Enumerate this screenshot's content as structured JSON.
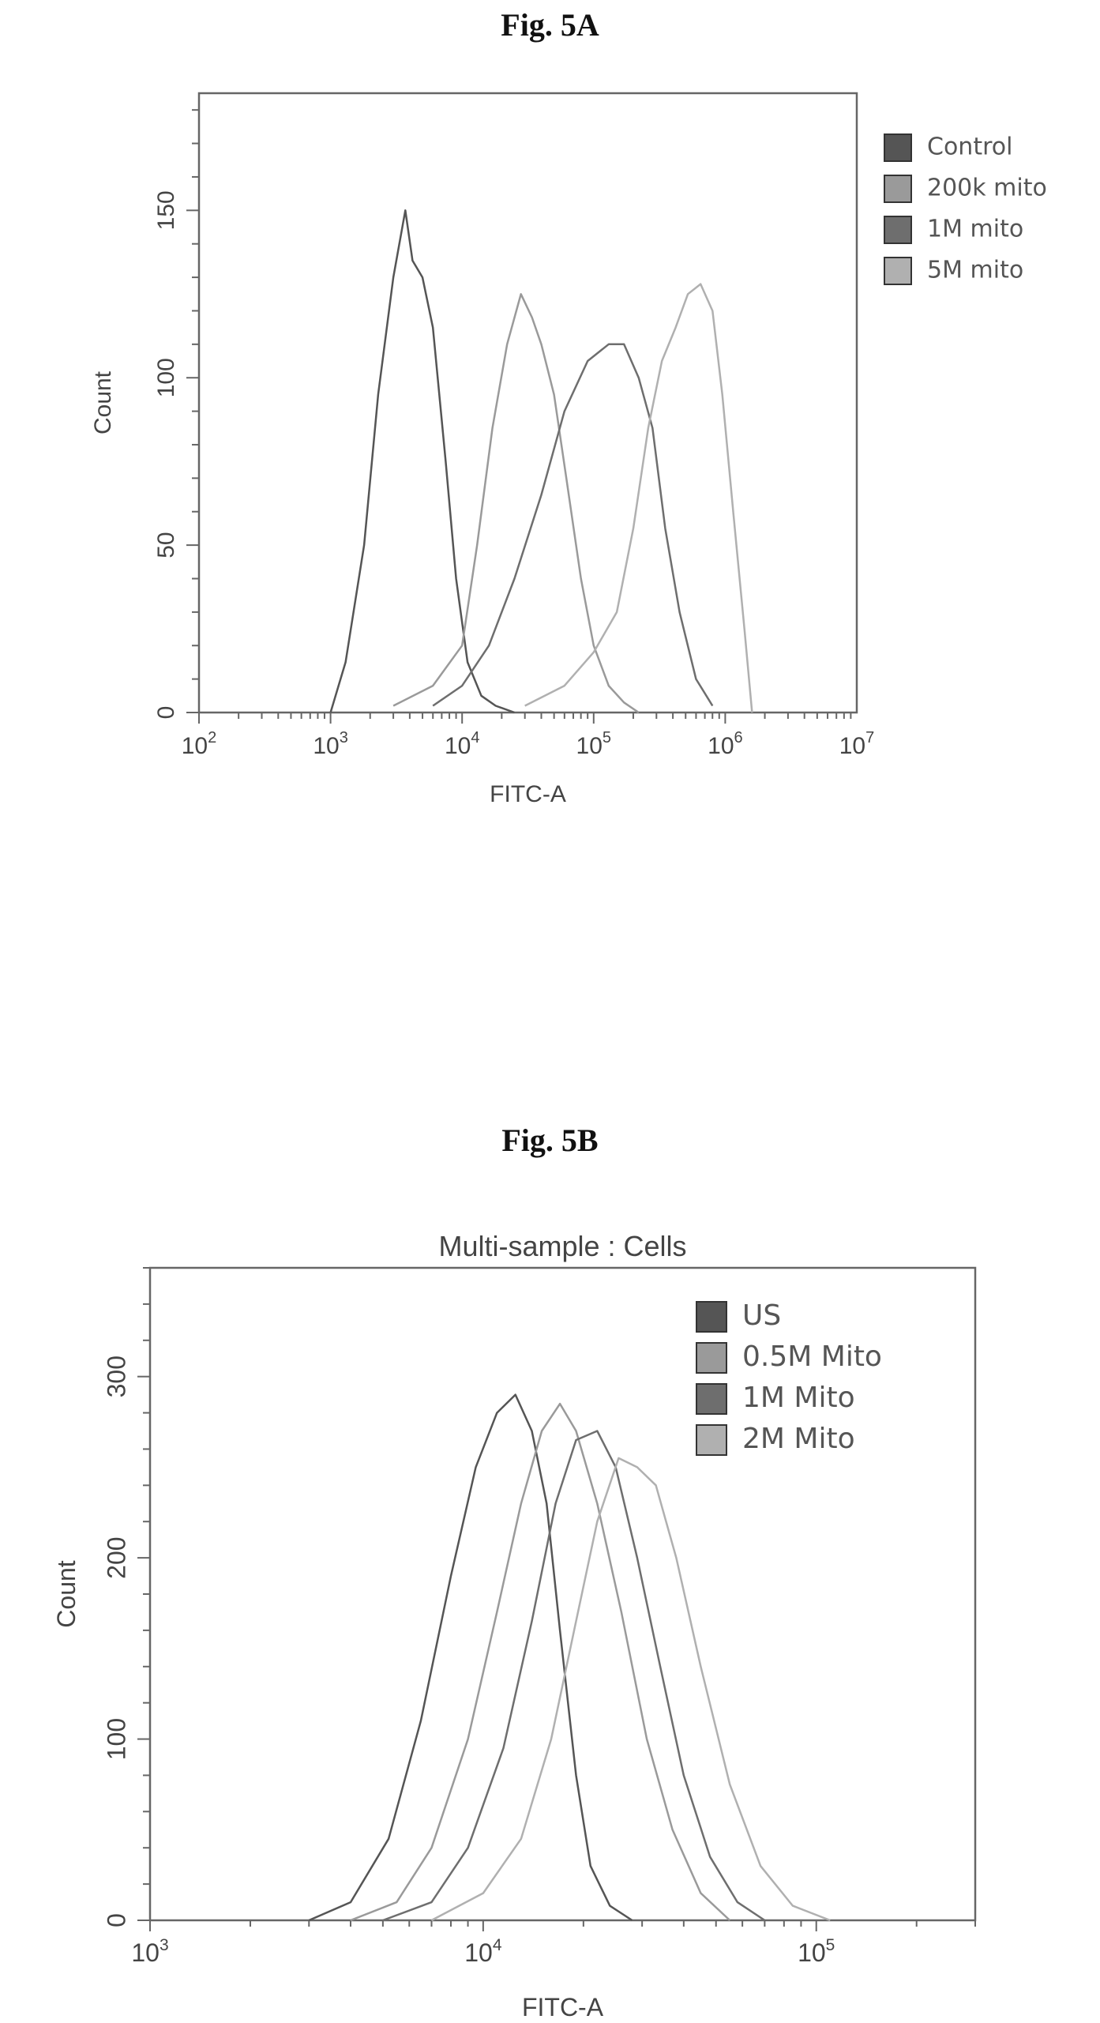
{
  "figure_a": {
    "label": "Fig. 5A"
  },
  "figure_b": {
    "label": "Fig. 5B"
  },
  "chart_data": [
    {
      "type": "line",
      "title": "",
      "xlabel": "FITC-A",
      "ylabel": "Count",
      "x_scale": "log",
      "xlim": [
        100,
        10000000
      ],
      "ylim": [
        0,
        185
      ],
      "x_ticks": [
        {
          "base": "10",
          "exp": "2",
          "value": 100
        },
        {
          "base": "10",
          "exp": "3",
          "value": 1000
        },
        {
          "base": "10",
          "exp": "4",
          "value": 10000
        },
        {
          "base": "10",
          "exp": "5",
          "value": 100000
        },
        {
          "base": "10",
          "exp": "6",
          "value": 1000000
        },
        {
          "base": "10",
          "exp": "7",
          "value": 10000000
        }
      ],
      "y_ticks": [
        "0",
        "50",
        "100",
        "150"
      ],
      "legend_position": "right",
      "series": [
        {
          "name": "Control",
          "color": "#555555",
          "x": [
            1000,
            1300,
            1800,
            2300,
            3000,
            3700,
            4200,
            5000,
            6000,
            7500,
            9000,
            11000,
            14000,
            18000,
            25000
          ],
          "y": [
            0,
            15,
            50,
            95,
            130,
            150,
            135,
            130,
            115,
            75,
            40,
            15,
            5,
            2,
            0
          ]
        },
        {
          "name": "200k mito",
          "color": "#9a9a9a",
          "x": [
            3000,
            6000,
            10000,
            13000,
            17000,
            22000,
            28000,
            34000,
            40000,
            50000,
            62000,
            80000,
            100000,
            130000,
            170000,
            220000
          ],
          "y": [
            2,
            8,
            20,
            50,
            85,
            110,
            125,
            118,
            110,
            95,
            70,
            40,
            20,
            8,
            3,
            0
          ]
        },
        {
          "name": "1M mito",
          "color": "#6e6e6e",
          "x": [
            6000,
            10000,
            16000,
            25000,
            40000,
            60000,
            90000,
            130000,
            170000,
            220000,
            280000,
            350000,
            450000,
            600000,
            800000
          ],
          "y": [
            2,
            8,
            20,
            40,
            65,
            90,
            105,
            110,
            110,
            100,
            85,
            55,
            30,
            10,
            2
          ]
        },
        {
          "name": "5M mito",
          "color": "#b0b0b0",
          "x": [
            30000,
            60000,
            100000,
            150000,
            200000,
            260000,
            330000,
            420000,
            520000,
            650000,
            800000,
            950000,
            1150000,
            1400000,
            1600000
          ],
          "y": [
            2,
            8,
            18,
            30,
            55,
            85,
            105,
            115,
            125,
            128,
            120,
            95,
            60,
            25,
            0
          ]
        }
      ]
    },
    {
      "type": "line",
      "title": "Multi-sample : Cells",
      "xlabel": "FITC-A",
      "ylabel": "Count",
      "x_scale": "log",
      "xlim": [
        1000,
        300000
      ],
      "ylim": [
        0,
        360
      ],
      "x_ticks": [
        {
          "base": "10",
          "exp": "3",
          "value": 1000
        },
        {
          "base": "10",
          "exp": "4",
          "value": 10000
        },
        {
          "base": "10",
          "exp": "5",
          "value": 100000
        }
      ],
      "y_ticks": [
        "0",
        "100",
        "200",
        "300"
      ],
      "legend_position": "top-right",
      "series": [
        {
          "name": "US",
          "color": "#555555",
          "x": [
            3000,
            4000,
            5200,
            6500,
            8000,
            9500,
            11000,
            12500,
            14000,
            15500,
            17000,
            19000,
            21000,
            24000,
            28000
          ],
          "y": [
            0,
            10,
            45,
            110,
            190,
            250,
            280,
            290,
            270,
            230,
            160,
            80,
            30,
            8,
            0
          ]
        },
        {
          "name": "0.5M Mito",
          "color": "#9a9a9a",
          "x": [
            4000,
            5500,
            7000,
            9000,
            11000,
            13000,
            15000,
            17000,
            19000,
            22000,
            26000,
            31000,
            37000,
            45000,
            55000
          ],
          "y": [
            0,
            10,
            40,
            100,
            170,
            230,
            270,
            285,
            270,
            230,
            170,
            100,
            50,
            15,
            0
          ]
        },
        {
          "name": "1M Mito",
          "color": "#6e6e6e",
          "x": [
            5000,
            7000,
            9000,
            11500,
            14000,
            16500,
            19000,
            22000,
            25000,
            29000,
            34000,
            40000,
            48000,
            58000,
            70000
          ],
          "y": [
            0,
            10,
            40,
            95,
            165,
            230,
            265,
            270,
            250,
            200,
            140,
            80,
            35,
            10,
            0
          ]
        },
        {
          "name": "2M Mito",
          "color": "#b0b0b0",
          "x": [
            7000,
            10000,
            13000,
            16000,
            19000,
            22000,
            25500,
            29000,
            33000,
            38000,
            45000,
            55000,
            68000,
            85000,
            110000
          ],
          "y": [
            0,
            15,
            45,
            100,
            165,
            220,
            255,
            250,
            240,
            200,
            140,
            75,
            30,
            8,
            0
          ]
        }
      ]
    }
  ]
}
